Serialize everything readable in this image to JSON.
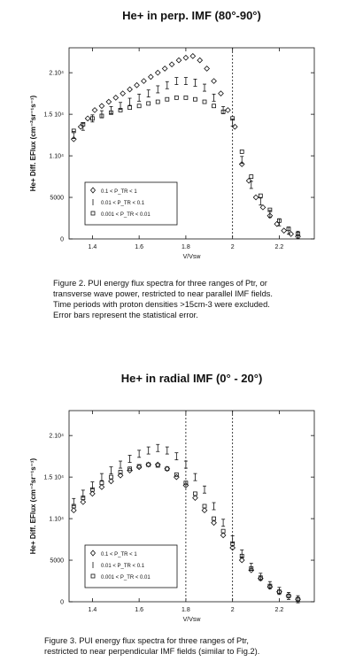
{
  "chart_data": [
    {
      "type": "scatter",
      "title": "He+ in perp. IMF (80°-90°)",
      "ylabel": "He+ Diff. EFlux (cm⁻²sr⁻¹s⁻¹)",
      "xlabel": "V/Vsw",
      "xlim": [
        1.3,
        2.35
      ],
      "ylim": [
        0,
        23000
      ],
      "xticks": [
        "1.4",
        "1.6",
        "1.8",
        "2",
        "2.2"
      ],
      "yticks": [
        "0",
        "5000",
        "1.10⁴",
        "1.5 10⁴",
        "2.10⁴"
      ],
      "vlines": [
        2.0
      ],
      "legend_position": "bottom-left",
      "legend": [
        "0.1 < P_TR < 1",
        "0.01 < P_TR < 0.1",
        "0.001 < P_TR < 0.01"
      ],
      "series": [
        {
          "name": "0.1 < P_TR < 1",
          "marker": "◇",
          "x": [
            1.32,
            1.35,
            1.38,
            1.41,
            1.44,
            1.47,
            1.5,
            1.53,
            1.56,
            1.59,
            1.62,
            1.65,
            1.68,
            1.71,
            1.74,
            1.77,
            1.8,
            1.83,
            1.86,
            1.89,
            1.92,
            1.95,
            1.98,
            2.01,
            2.04,
            2.07,
            2.1,
            2.13,
            2.16,
            2.19,
            2.22,
            2.25,
            2.28
          ],
          "y": [
            12000,
            13500,
            14500,
            15500,
            16000,
            16500,
            17000,
            17500,
            18000,
            18500,
            19000,
            19500,
            20000,
            20500,
            21000,
            21500,
            21800,
            22000,
            21500,
            20500,
            19000,
            17500,
            15500,
            13500,
            9000,
            7000,
            5000,
            3800,
            2800,
            1800,
            1000,
            600,
            300
          ]
        },
        {
          "name": "0.01 < P_TR < 0.1",
          "marker": "I",
          "x": [
            1.32,
            1.36,
            1.4,
            1.44,
            1.48,
            1.52,
            1.56,
            1.6,
            1.64,
            1.68,
            1.72,
            1.76,
            1.8,
            1.84,
            1.88,
            1.92,
            1.96,
            2.0,
            2.04,
            2.08,
            2.12,
            2.16,
            2.2,
            2.24,
            2.28
          ],
          "y": [
            12500,
            13500,
            14500,
            15000,
            15500,
            16000,
            16500,
            17000,
            17500,
            18000,
            18500,
            19000,
            19000,
            18800,
            18200,
            17000,
            15500,
            14000,
            9500,
            6500,
            4500,
            3000,
            2000,
            1000,
            500
          ]
        },
        {
          "name": "0.001 < P_TR < 0.01",
          "marker": "□",
          "x": [
            1.32,
            1.36,
            1.4,
            1.44,
            1.48,
            1.52,
            1.56,
            1.6,
            1.64,
            1.68,
            1.72,
            1.76,
            1.8,
            1.84,
            1.88,
            1.92,
            1.96,
            2.0,
            2.04,
            2.08,
            2.12,
            2.16,
            2.2,
            2.24,
            2.28
          ],
          "y": [
            13000,
            13800,
            14500,
            14800,
            15200,
            15500,
            15800,
            16000,
            16300,
            16500,
            16800,
            17000,
            17000,
            16800,
            16500,
            16000,
            15300,
            14500,
            10500,
            7500,
            5200,
            3500,
            2200,
            1200,
            600
          ]
        }
      ]
    },
    {
      "type": "scatter",
      "title": "He+ in radial IMF (0° - 20°)",
      "ylabel": "He+ Diff. EFlux (cm⁻²sr⁻¹s⁻¹)",
      "xlabel": "V/Vsw",
      "xlim": [
        1.3,
        2.35
      ],
      "ylim": [
        0,
        23000
      ],
      "xticks": [
        "1.4",
        "1.6",
        "1.8",
        "2",
        "2.2"
      ],
      "yticks": [
        "0",
        "5000",
        "1.10⁴",
        "1.5 10⁴",
        "2.10⁴"
      ],
      "vlines": [
        1.8,
        2.0
      ],
      "legend_position": "bottom-left",
      "legend": [
        "0.1 < P_TR < 1",
        "0.01 < P_TR < 0.1",
        "0.001 < P_TR < 0.01"
      ],
      "series": [
        {
          "name": "0.1 < P_TR < 1",
          "marker": "◇",
          "x": [
            1.32,
            1.36,
            1.4,
            1.44,
            1.48,
            1.52,
            1.56,
            1.6,
            1.64,
            1.68,
            1.72,
            1.76,
            1.8,
            1.84,
            1.88,
            1.92,
            1.96,
            2.0,
            2.04,
            2.08,
            2.12,
            2.16,
            2.2,
            2.24,
            2.28
          ],
          "y": [
            11000,
            12000,
            13000,
            13800,
            14500,
            15200,
            15800,
            16200,
            16500,
            16500,
            16000,
            15000,
            14000,
            12500,
            11000,
            9500,
            8000,
            6500,
            5000,
            3800,
            2800,
            1800,
            1200,
            700,
            300
          ]
        },
        {
          "name": "0.01 < P_TR < 0.1",
          "marker": "I",
          "x": [
            1.32,
            1.36,
            1.4,
            1.44,
            1.48,
            1.52,
            1.56,
            1.6,
            1.64,
            1.68,
            1.72,
            1.76,
            1.8,
            1.84,
            1.88,
            1.92,
            1.96,
            2.0,
            2.04,
            2.08,
            2.12,
            2.16,
            2.2,
            2.24,
            2.28
          ],
          "y": [
            12000,
            13000,
            14000,
            15000,
            15800,
            16500,
            17200,
            17800,
            18200,
            18500,
            18200,
            17500,
            16500,
            15000,
            13500,
            11500,
            9500,
            7500,
            5800,
            4200,
            3000,
            2000,
            1300,
            700,
            300
          ]
        },
        {
          "name": "0.001 < P_TR < 0.01",
          "marker": "□",
          "x": [
            1.32,
            1.36,
            1.4,
            1.44,
            1.48,
            1.52,
            1.56,
            1.6,
            1.64,
            1.68,
            1.72,
            1.76,
            1.8,
            1.84,
            1.88,
            1.92,
            1.96,
            2.0,
            2.04,
            2.08,
            2.12,
            2.16,
            2.2,
            2.24,
            2.28
          ],
          "y": [
            11500,
            12500,
            13500,
            14300,
            15000,
            15600,
            16000,
            16300,
            16500,
            16400,
            16000,
            15300,
            14300,
            13000,
            11500,
            10000,
            8500,
            7000,
            5500,
            4000,
            2900,
            1900,
            1200,
            700,
            300
          ]
        }
      ]
    }
  ],
  "captions": {
    "fig2": "Figure 2. PUI energy flux spectra for three ranges of Ptr, or\ntransverse wave power, restricted to near parallel IMF fields.\nTime periods with proton densities >15cm-3 were excluded.\nError bars represent the statistical error.",
    "fig3": "Figure 3. PUI energy flux spectra for three ranges of Ptr,\nrestricted to near perpendicular IMF fields (similar to Fig.2)."
  }
}
